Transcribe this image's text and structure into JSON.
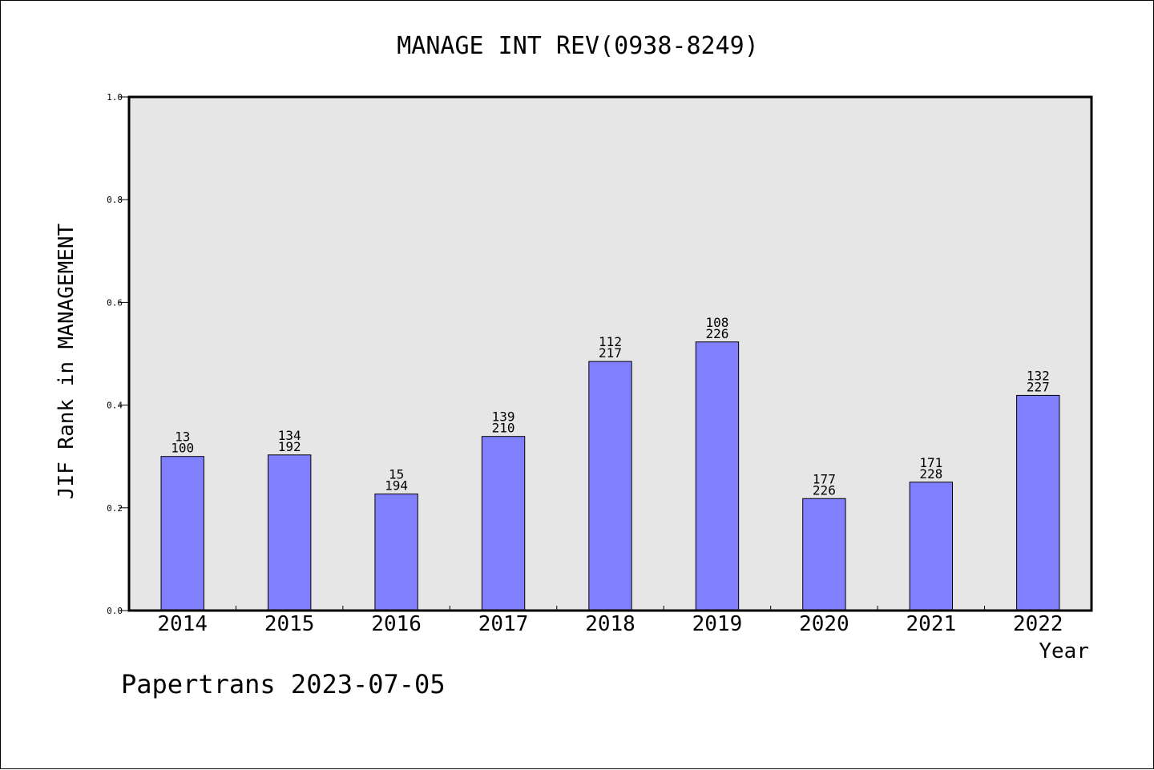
{
  "chart_data": {
    "type": "bar",
    "title": "MANAGE INT REV(0938-8249)",
    "xlabel": "Year",
    "ylabel": "JIF Rank in MANAGEMENT",
    "categories": [
      "2014",
      "2015",
      "2016",
      "2017",
      "2018",
      "2019",
      "2020",
      "2021",
      "2022"
    ],
    "values": [
      0.3,
      0.303,
      0.227,
      0.339,
      0.485,
      0.523,
      0.218,
      0.25,
      0.419
    ],
    "labels_top": [
      "13",
      "134",
      "15",
      "139",
      "112",
      "108",
      "177",
      "171",
      "132"
    ],
    "labels_bottom": [
      "100",
      "192",
      "194",
      "210",
      "217",
      "226",
      "226",
      "228",
      "227"
    ],
    "ylim": [
      0.0,
      1.0
    ],
    "yticks": [
      "0.0",
      "0.2",
      "0.4",
      "0.6",
      "0.8",
      "1.0"
    ],
    "ytick_values": [
      0.0,
      0.2,
      0.4,
      0.6,
      0.8,
      1.0
    ],
    "bar_color": "#8080ff",
    "plot_background": "#e6e6e6",
    "grid": false,
    "legend": "none",
    "footer": "Papertrans 2023-07-05"
  }
}
